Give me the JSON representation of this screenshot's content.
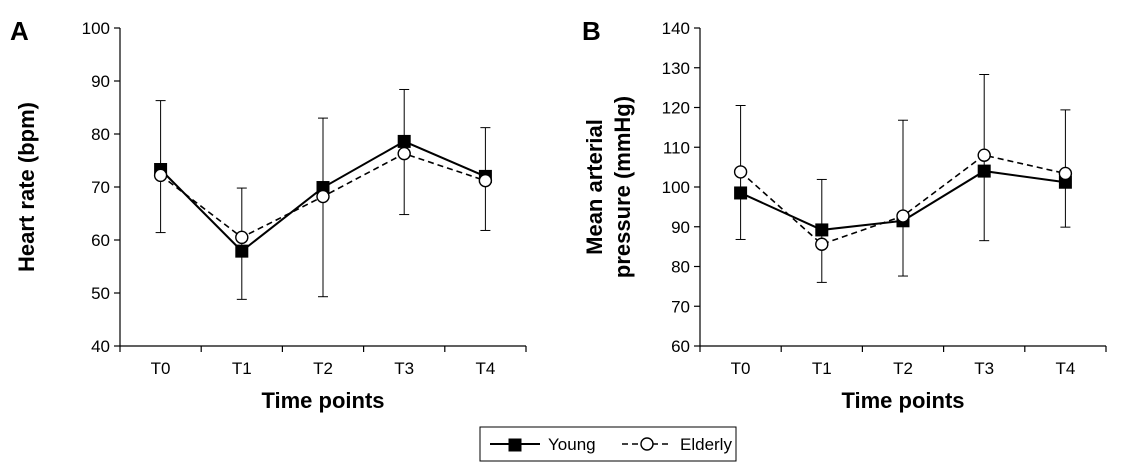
{
  "chart_data": [
    {
      "type": "line",
      "panel_label": "A",
      "categories": [
        "T0",
        "T1",
        "T2",
        "T3",
        "T4"
      ],
      "xlabel": "Time points",
      "ylabel": "Heart rate (bpm)",
      "ylim": [
        40,
        100
      ],
      "yticks": [
        40,
        50,
        60,
        70,
        80,
        90,
        100
      ],
      "series": [
        {
          "name": "Young",
          "values": [
            73.3,
            57.9,
            69.9,
            78.6,
            72.0
          ],
          "err_upper": [
            86.3,
            69.8,
            83.0,
            88.4,
            81.2
          ],
          "err_lower": [
            61.4,
            48.8,
            49.3,
            64.8,
            61.8
          ]
        },
        {
          "name": "Elderly",
          "values": [
            72.2,
            60.5,
            68.2,
            76.3,
            71.2
          ]
        }
      ]
    },
    {
      "type": "line",
      "panel_label": "B",
      "categories": [
        "T0",
        "T1",
        "T2",
        "T3",
        "T4"
      ],
      "xlabel": "Time points",
      "ylabel": "Mean arterial pressure (mmHg)",
      "ylabel_lines": [
        "Mean arterial",
        "pressure (mmHg)"
      ],
      "ylim": [
        60,
        140
      ],
      "yticks": [
        60,
        70,
        80,
        90,
        100,
        110,
        120,
        130,
        140
      ],
      "series": [
        {
          "name": "Young",
          "values": [
            98.5,
            89.2,
            91.5,
            104.0,
            101.2
          ],
          "err_upper": [
            120.5,
            101.9,
            116.8,
            128.3,
            119.4
          ],
          "err_lower": [
            86.8,
            76.0,
            77.6,
            86.5,
            89.9
          ]
        },
        {
          "name": "Elderly",
          "values": [
            103.8,
            85.6,
            92.7,
            108.0,
            103.4
          ]
        }
      ]
    }
  ],
  "legend": {
    "items": [
      {
        "label": "Young",
        "marker": "filled-square",
        "line": "solid"
      },
      {
        "label": "Elderly",
        "marker": "open-circle",
        "line": "dashed"
      }
    ]
  },
  "colors": {
    "line": "#000000",
    "axis": "#000000",
    "background": "#ffffff"
  }
}
